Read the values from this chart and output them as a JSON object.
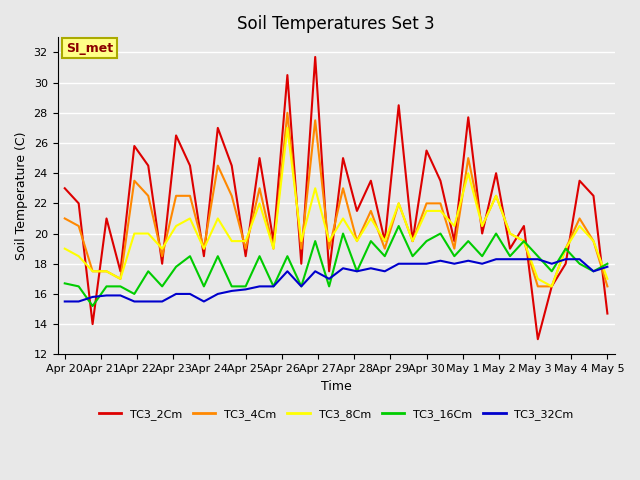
{
  "title": "Soil Temperatures Set 3",
  "xlabel": "Time",
  "ylabel": "Soil Temperature (C)",
  "ylim": [
    12,
    33
  ],
  "yticks": [
    12,
    14,
    16,
    18,
    20,
    22,
    24,
    26,
    28,
    30,
    32
  ],
  "x_labels": [
    "Apr 20",
    "Apr 21",
    "Apr 22",
    "Apr 23",
    "Apr 24",
    "Apr 25",
    "Apr 26",
    "Apr 27",
    "Apr 28",
    "Apr 29",
    "Apr 30",
    "May 1",
    "May 2",
    "May 3",
    "May 4",
    "May 5"
  ],
  "annotation_text": "SI_met",
  "annotation_color": "#8B0000",
  "annotation_bg": "#FFFF88",
  "annotation_border": "#AAAA00",
  "series": {
    "TC3_2Cm": {
      "color": "#DD0000",
      "values": [
        23.0,
        22.0,
        14.0,
        21.0,
        17.5,
        25.8,
        24.5,
        18.0,
        26.5,
        24.5,
        18.5,
        27.0,
        24.5,
        18.5,
        25.0,
        19.5,
        30.5,
        18.0,
        31.7,
        17.5,
        25.0,
        21.5,
        23.5,
        19.5,
        28.5,
        19.5,
        25.5,
        23.5,
        19.5,
        27.7,
        20.0,
        24.0,
        19.0,
        20.5,
        13.0,
        16.5,
        18.0,
        23.5,
        22.5,
        14.7
      ]
    },
    "TC3_4Cm": {
      "color": "#FF8800",
      "values": [
        21.0,
        20.5,
        17.5,
        17.5,
        17.0,
        23.5,
        22.5,
        18.5,
        22.5,
        22.5,
        19.0,
        24.5,
        22.5,
        19.0,
        23.0,
        19.0,
        28.0,
        19.0,
        27.5,
        19.0,
        23.0,
        19.5,
        21.5,
        19.0,
        22.0,
        19.5,
        22.0,
        22.0,
        19.0,
        25.0,
        20.5,
        22.5,
        20.0,
        19.5,
        16.5,
        16.5,
        19.0,
        21.0,
        19.5,
        16.5
      ]
    },
    "TC3_8Cm": {
      "color": "#FFFF00",
      "values": [
        19.0,
        18.5,
        17.5,
        17.5,
        17.0,
        20.0,
        20.0,
        19.0,
        20.5,
        21.0,
        19.0,
        21.0,
        19.5,
        19.5,
        22.0,
        19.0,
        27.0,
        19.5,
        23.0,
        19.5,
        21.0,
        19.5,
        21.0,
        19.5,
        22.0,
        19.5,
        21.5,
        21.5,
        20.5,
        24.0,
        20.5,
        22.5,
        20.0,
        19.5,
        17.0,
        16.5,
        19.0,
        20.5,
        19.5,
        17.0
      ]
    },
    "TC3_16Cm": {
      "color": "#00CC00",
      "values": [
        16.7,
        16.5,
        15.2,
        16.5,
        16.5,
        16.0,
        17.5,
        16.5,
        17.8,
        18.5,
        16.5,
        18.5,
        16.5,
        16.5,
        18.5,
        16.5,
        18.5,
        16.5,
        19.5,
        16.5,
        20.0,
        17.5,
        19.5,
        18.5,
        20.5,
        18.5,
        19.5,
        20.0,
        18.5,
        19.5,
        18.5,
        20.0,
        18.5,
        19.5,
        18.5,
        17.5,
        19.0,
        18.0,
        17.5,
        18.0
      ]
    },
    "TC3_32Cm": {
      "color": "#0000CC",
      "values": [
        15.5,
        15.5,
        15.8,
        15.9,
        15.9,
        15.5,
        15.5,
        15.5,
        16.0,
        16.0,
        15.5,
        16.0,
        16.2,
        16.3,
        16.5,
        16.5,
        17.5,
        16.5,
        17.5,
        17.0,
        17.7,
        17.5,
        17.7,
        17.5,
        18.0,
        18.0,
        18.0,
        18.2,
        18.0,
        18.2,
        18.0,
        18.3,
        18.3,
        18.3,
        18.3,
        18.0,
        18.3,
        18.3,
        17.5,
        17.8
      ]
    }
  },
  "bg_color": "#E8E8E8",
  "plot_bg_color": "#E8E8E8",
  "grid_color": "#FFFFFF",
  "title_fontsize": 12,
  "axis_label_fontsize": 9,
  "tick_fontsize": 8
}
